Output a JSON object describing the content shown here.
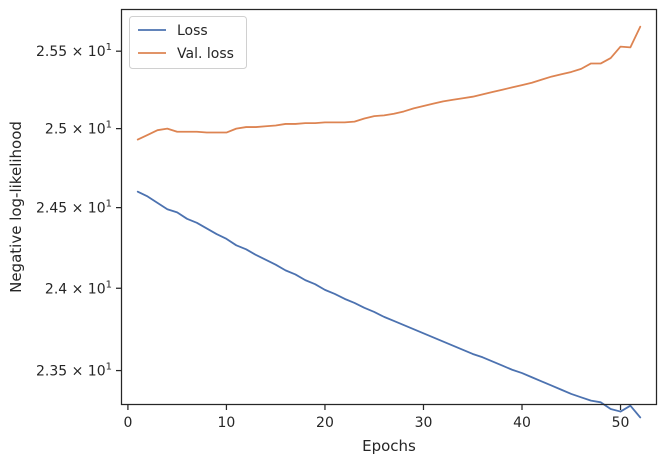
{
  "chart_data": {
    "type": "line",
    "title": "",
    "xlabel": "Epochs",
    "ylabel": "Negative log-likelihood",
    "yscale": "log",
    "xlim": [
      -0.6,
      53.6
    ],
    "ylim": [
      23.3,
      25.77
    ],
    "xticks": [
      0,
      10,
      20,
      30,
      40,
      50
    ],
    "yticks": [
      {
        "value": 23.5,
        "mantissa": "2.35",
        "exp": "1"
      },
      {
        "value": 24.0,
        "mantissa": "2.4",
        "exp": "1"
      },
      {
        "value": 24.5,
        "mantissa": "2.45",
        "exp": "1"
      },
      {
        "value": 25.0,
        "mantissa": "2.5",
        "exp": "1"
      },
      {
        "value": 25.5,
        "mantissa": "2.55",
        "exp": "1"
      }
    ],
    "legend_position": "top-left",
    "grid": false,
    "series": [
      {
        "name": "Loss",
        "color": "#4c72b0",
        "x": [
          1,
          2,
          3,
          4,
          5,
          6,
          7,
          8,
          9,
          10,
          11,
          12,
          13,
          14,
          15,
          16,
          17,
          18,
          19,
          20,
          21,
          22,
          23,
          24,
          25,
          26,
          27,
          28,
          29,
          30,
          31,
          32,
          33,
          34,
          35,
          36,
          37,
          38,
          39,
          40,
          41,
          42,
          43,
          44,
          45,
          46,
          47,
          48,
          49,
          50,
          51,
          52
        ],
        "values": [
          24.6,
          24.57,
          24.53,
          24.49,
          24.47,
          24.43,
          24.405,
          24.37,
          24.335,
          24.305,
          24.265,
          24.24,
          24.205,
          24.175,
          24.145,
          24.11,
          24.085,
          24.05,
          24.025,
          23.99,
          23.965,
          23.935,
          23.91,
          23.88,
          23.855,
          23.825,
          23.8,
          23.775,
          23.75,
          23.725,
          23.7,
          23.675,
          23.65,
          23.625,
          23.6,
          23.58,
          23.555,
          23.53,
          23.505,
          23.485,
          23.46,
          23.435,
          23.41,
          23.385,
          23.36,
          23.34,
          23.32,
          23.31,
          23.27,
          23.255,
          23.29,
          23.22
        ]
      },
      {
        "name": "Val. loss",
        "color": "#dd8452",
        "x": [
          1,
          2,
          3,
          4,
          5,
          6,
          7,
          8,
          9,
          10,
          11,
          12,
          13,
          14,
          15,
          16,
          17,
          18,
          19,
          20,
          21,
          22,
          23,
          24,
          25,
          26,
          27,
          28,
          29,
          30,
          31,
          32,
          33,
          34,
          35,
          36,
          37,
          38,
          39,
          40,
          41,
          42,
          43,
          44,
          45,
          46,
          47,
          48,
          49,
          50,
          51,
          52
        ],
        "values": [
          24.93,
          24.96,
          24.99,
          25.0,
          24.98,
          24.98,
          24.98,
          24.975,
          24.975,
          24.975,
          25.0,
          25.01,
          25.01,
          25.015,
          25.02,
          25.03,
          25.03,
          25.035,
          25.035,
          25.04,
          25.04,
          25.04,
          25.045,
          25.065,
          25.08,
          25.085,
          25.095,
          25.11,
          25.13,
          25.145,
          25.16,
          25.175,
          25.185,
          25.195,
          25.205,
          25.22,
          25.235,
          25.25,
          25.265,
          25.28,
          25.295,
          25.315,
          25.335,
          25.35,
          25.365,
          25.385,
          25.42,
          25.42,
          25.455,
          25.53,
          25.525,
          25.66
        ]
      }
    ]
  }
}
